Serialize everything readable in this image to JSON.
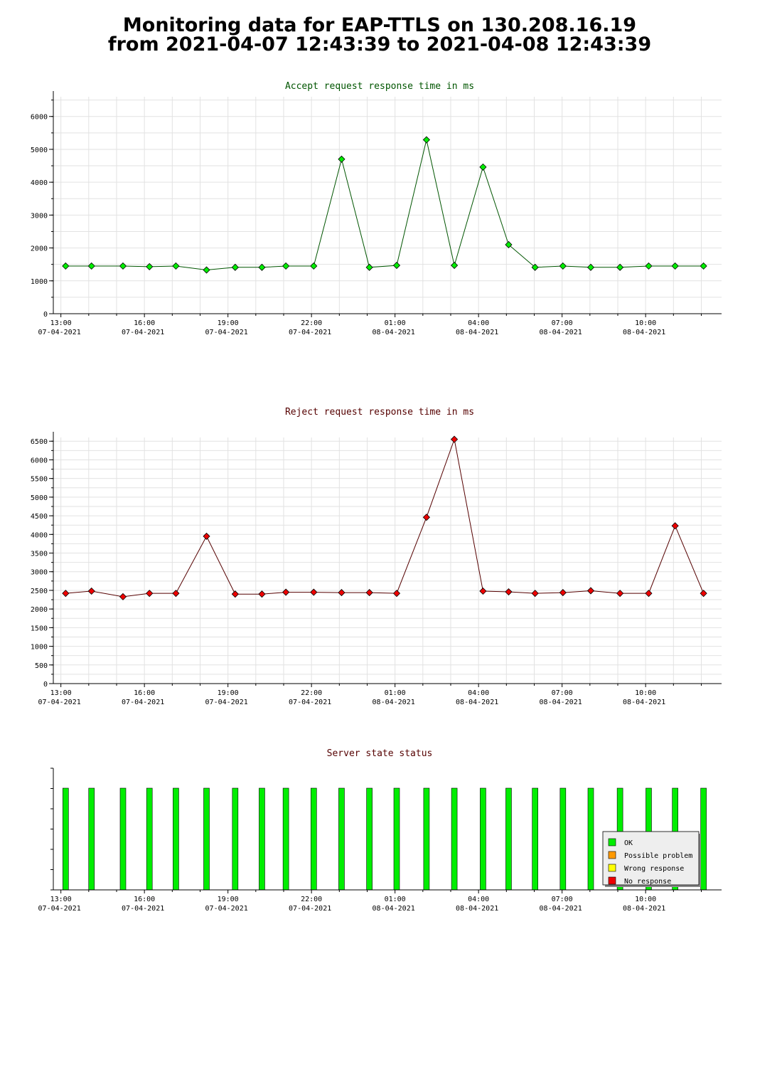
{
  "page": {
    "title_line1": "Monitoring data for EAP-TTLS on 130.208.16.19",
    "title_line2": "from 2021-04-07 12:43:39 to 2021-04-08 12:43:39"
  },
  "time_axis": {
    "start_hour": 12.728,
    "end_hour": 36.728,
    "ticks": [
      {
        "hour": 13,
        "time": "13:00",
        "date": "07-04-2021"
      },
      {
        "hour": 16,
        "time": "16:00",
        "date": "07-04-2021"
      },
      {
        "hour": 19,
        "time": "19:00",
        "date": "07-04-2021"
      },
      {
        "hour": 22,
        "time": "22:00",
        "date": "07-04-2021"
      },
      {
        "hour": 25,
        "time": "01:00",
        "date": "08-04-2021"
      },
      {
        "hour": 28,
        "time": "04:00",
        "date": "08-04-2021"
      },
      {
        "hour": 31,
        "time": "07:00",
        "date": "08-04-2021"
      },
      {
        "hour": 34,
        "time": "10:00",
        "date": "08-04-2021"
      }
    ]
  },
  "chart_data": [
    {
      "type": "line",
      "title": "Accept request response time in ms",
      "title_color": "#005500",
      "line_color": "#005500",
      "marker_color": "#00ee00",
      "ylim": [
        0,
        6600
      ],
      "yticks": [
        0,
        1000,
        2000,
        3000,
        4000,
        5000,
        6000
      ],
      "grid": true,
      "x": [
        13.17,
        14.1,
        15.23,
        16.18,
        17.13,
        18.23,
        19.26,
        20.22,
        21.08,
        22.08,
        23.08,
        24.08,
        25.06,
        26.13,
        27.13,
        28.16,
        29.08,
        30.03,
        31.03,
        32.03,
        33.08,
        34.11,
        35.06,
        36.08
      ],
      "values": [
        1450,
        1450,
        1450,
        1430,
        1450,
        1330,
        1410,
        1410,
        1450,
        1450,
        4700,
        1410,
        1470,
        5290,
        1470,
        4460,
        2100,
        1410,
        1450,
        1410,
        1410,
        1450,
        1450,
        1450
      ]
    },
    {
      "type": "line",
      "title": "Reject request response time in ms",
      "title_color": "#550000",
      "line_color": "#550000",
      "marker_color": "#ee0000",
      "ylim": [
        0,
        6600
      ],
      "yticks": [
        0,
        500,
        1000,
        1500,
        2000,
        2500,
        3000,
        3500,
        4000,
        4500,
        5000,
        5500,
        6000,
        6500
      ],
      "grid": true,
      "x": [
        13.17,
        14.1,
        15.23,
        16.18,
        17.13,
        18.23,
        19.26,
        20.22,
        21.08,
        22.08,
        23.08,
        24.08,
        25.06,
        26.13,
        27.13,
        28.16,
        29.08,
        30.03,
        31.03,
        32.03,
        33.08,
        34.11,
        35.06,
        36.08
      ],
      "values": [
        2420,
        2480,
        2330,
        2420,
        2420,
        3950,
        2400,
        2400,
        2450,
        2450,
        2440,
        2440,
        2420,
        4460,
        6550,
        2480,
        2460,
        2420,
        2440,
        2490,
        2420,
        2420,
        4230,
        2420
      ]
    },
    {
      "type": "bar",
      "title": "Server state status",
      "title_color": "#550000",
      "legend_position": "bottom-right",
      "x": [
        13.17,
        14.1,
        15.23,
        16.18,
        17.13,
        18.23,
        19.26,
        20.22,
        21.08,
        22.08,
        23.08,
        24.08,
        25.06,
        26.13,
        27.13,
        28.16,
        29.08,
        30.03,
        31.03,
        32.03,
        33.08,
        34.11,
        35.06,
        36.08
      ],
      "status": [
        "OK",
        "OK",
        "OK",
        "OK",
        "OK",
        "OK",
        "OK",
        "OK",
        "OK",
        "OK",
        "OK",
        "OK",
        "OK",
        "OK",
        "OK",
        "OK",
        "OK",
        "OK",
        "OK",
        "OK",
        "OK",
        "OK",
        "OK",
        "OK"
      ],
      "legend": [
        {
          "label": "OK",
          "color": "#00ee00"
        },
        {
          "label": "Possible problem",
          "color": "#ff9900"
        },
        {
          "label": "Wrong response",
          "color": "#ffff00"
        },
        {
          "label": "No response",
          "color": "#ee0000"
        }
      ]
    }
  ]
}
